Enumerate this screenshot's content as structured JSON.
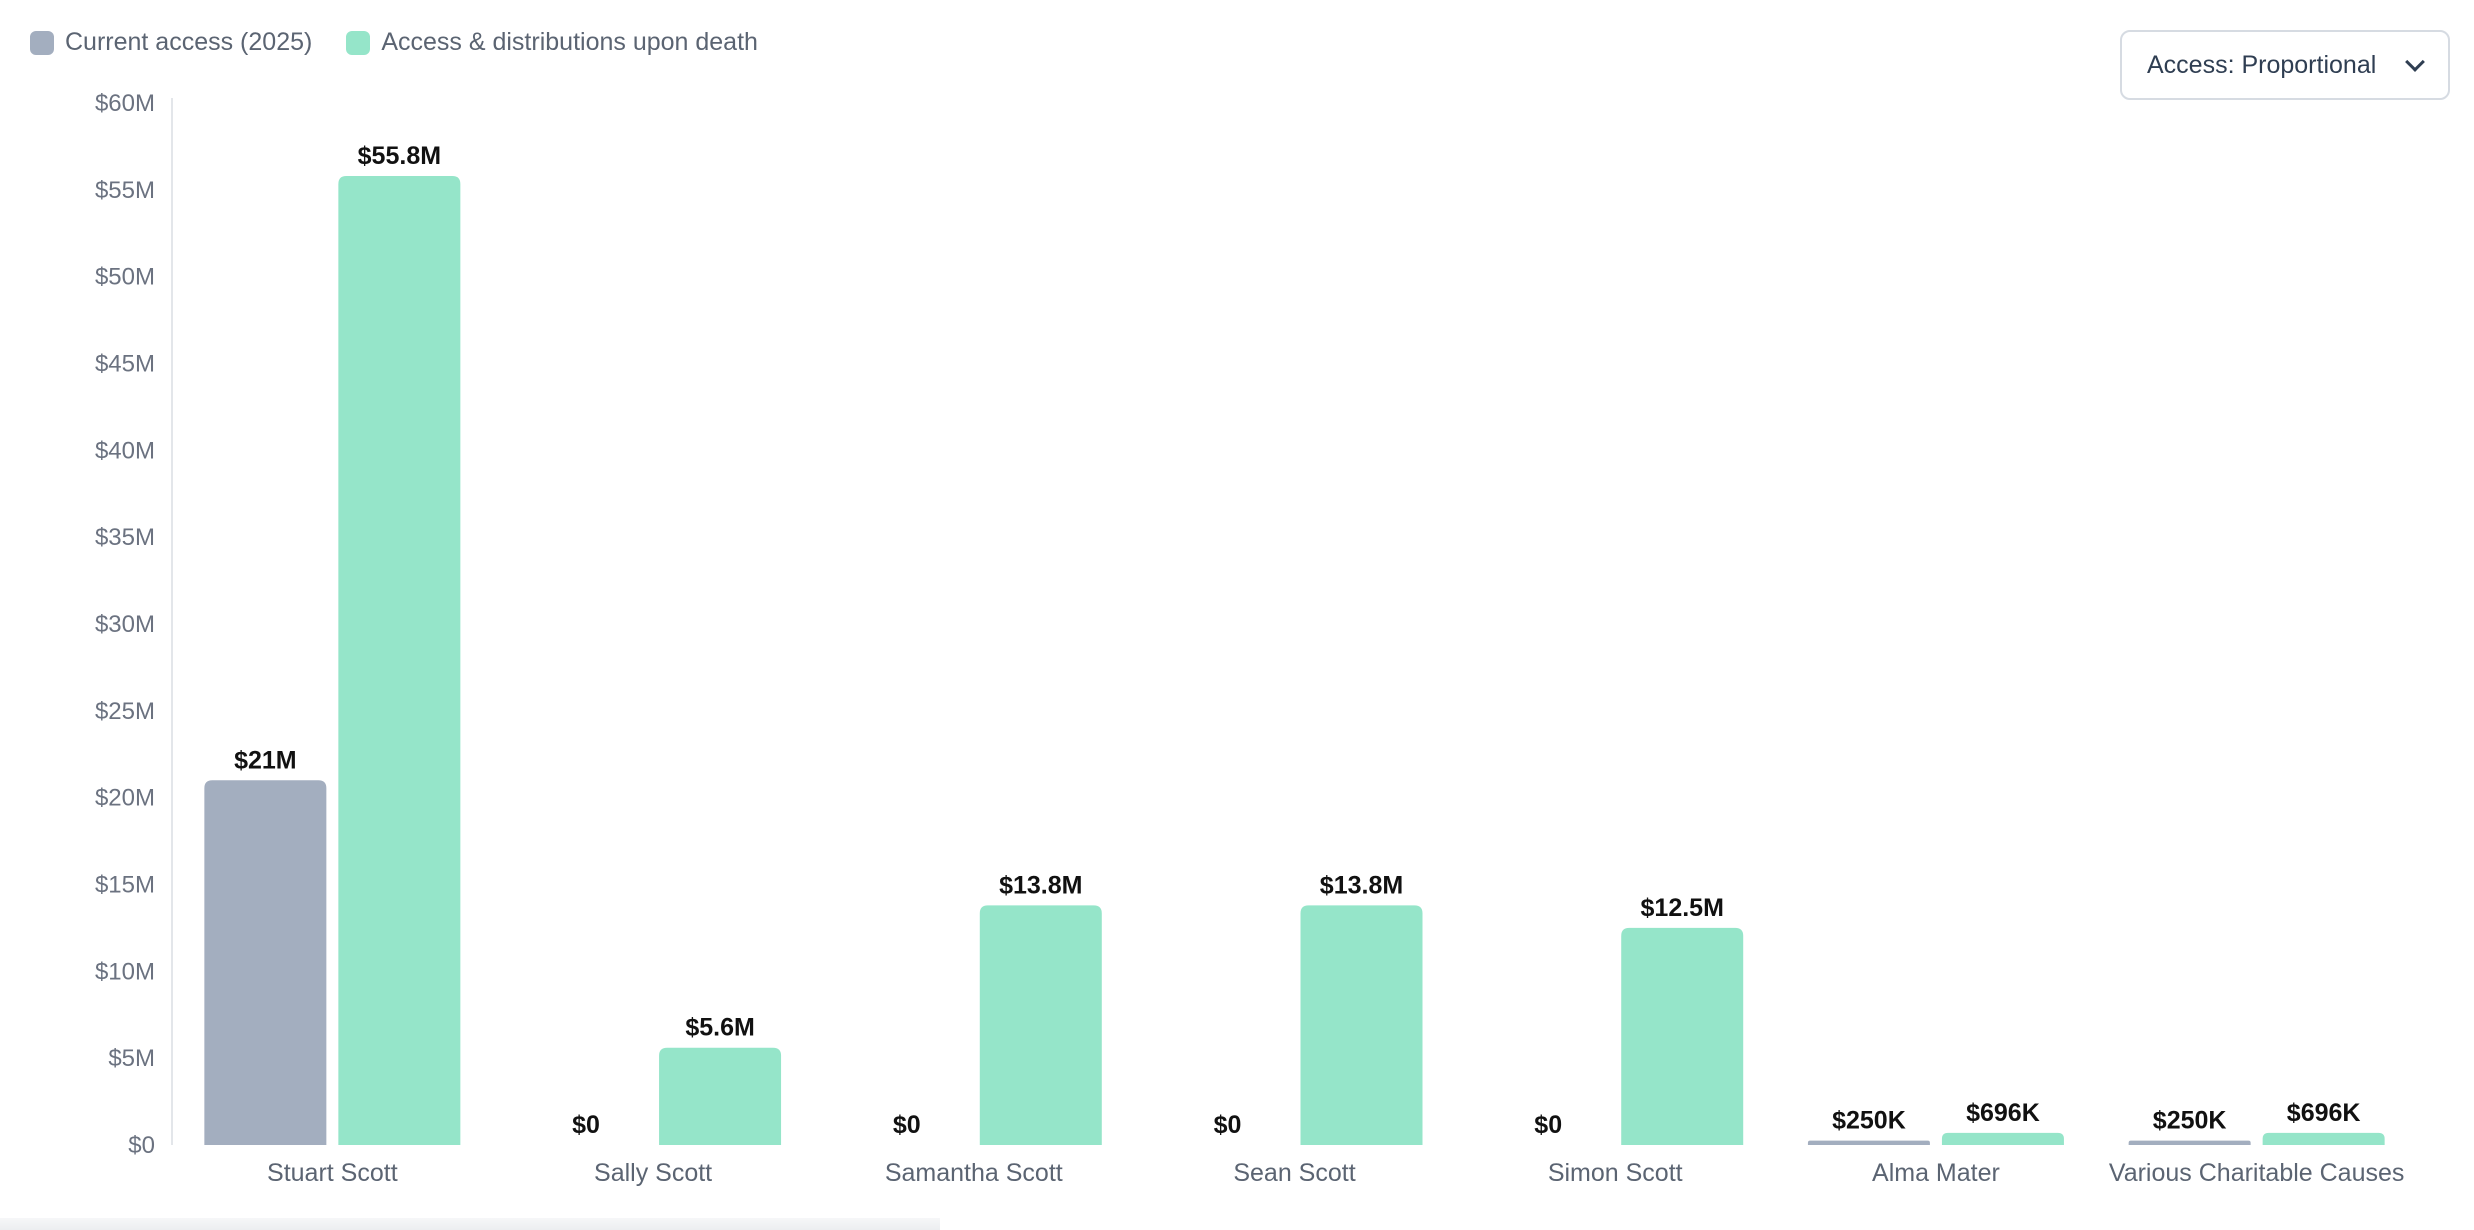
{
  "dropdown": {
    "label": "Access: Proportional"
  },
  "colors": {
    "current": "#a3aebf",
    "death": "#95e5c9",
    "axis": "#e3e6ea"
  },
  "chart_data": {
    "type": "bar",
    "title": "",
    "xlabel": "",
    "ylabel": "",
    "legend_placement": "top-left",
    "grid": false,
    "ylim": [
      0,
      60000000
    ],
    "y_ticks": [
      0,
      5000000,
      10000000,
      15000000,
      20000000,
      25000000,
      30000000,
      35000000,
      40000000,
      45000000,
      50000000,
      55000000,
      60000000
    ],
    "y_tick_labels": [
      "$0",
      "$5M",
      "$10M",
      "$15M",
      "$20M",
      "$25M",
      "$30M",
      "$35M",
      "$40M",
      "$45M",
      "$50M",
      "$55M",
      "$60M"
    ],
    "categories": [
      "Stuart Scott",
      "Sally Scott",
      "Samantha Scott",
      "Sean Scott",
      "Simon Scott",
      "Alma Mater",
      "Various Charitable Causes"
    ],
    "series": [
      {
        "name": "Current access (2025)",
        "color": "#a3aebf",
        "values": [
          21000000,
          0,
          0,
          0,
          0,
          250000,
          250000
        ],
        "labels": [
          "$21M",
          "$0",
          "$0",
          "$0",
          "$0",
          "$250K",
          "$250K"
        ]
      },
      {
        "name": "Access & distributions upon death",
        "color": "#95e5c9",
        "values": [
          55800000,
          5600000,
          13800000,
          13800000,
          12500000,
          696000,
          696000
        ],
        "labels": [
          "$55.8M",
          "$5.6M",
          "$13.8M",
          "$13.8M",
          "$12.5M",
          "$696K",
          "$696K"
        ]
      }
    ]
  }
}
